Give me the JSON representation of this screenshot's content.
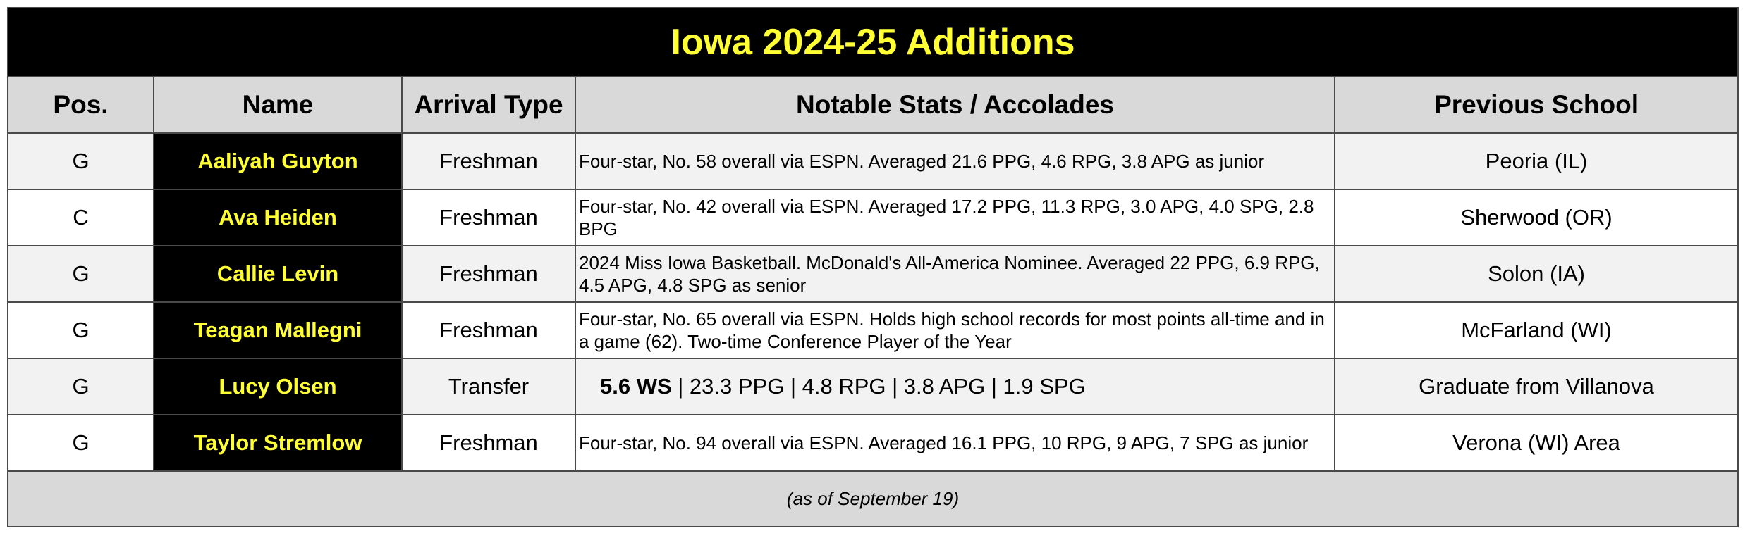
{
  "title": "Iowa 2024-25 Additions",
  "headers": {
    "pos": "Pos.",
    "name": "Name",
    "arrival": "Arrival Type",
    "notes": "Notable Stats / Accolades",
    "school": "Previous School"
  },
  "rows": [
    {
      "pos": "G",
      "name": "Aaliyah Guyton",
      "arrival": "Freshman",
      "notes": "Four-star, No. 58 overall via ESPN. Averaged 21.6 PPG, 4.6 RPG, 3.8 APG as junior",
      "school": "Peoria (IL)"
    },
    {
      "pos": "C",
      "name": "Ava Heiden",
      "arrival": "Freshman",
      "notes": "Four-star, No. 42 overall via ESPN. Averaged 17.2 PPG, 11.3 RPG, 3.0 APG, 4.0 SPG, 2.8 BPG",
      "school": "Sherwood (OR)"
    },
    {
      "pos": "G",
      "name": "Callie Levin",
      "arrival": "Freshman",
      "notes": "2024 Miss Iowa Basketball. McDonald's All-America Nominee. Averaged 22 PPG, 6.9 RPG, 4.5 APG, 4.8 SPG as senior",
      "school": "Solon (IA)"
    },
    {
      "pos": "G",
      "name": "Teagan Mallegni",
      "arrival": "Freshman",
      "notes": "Four-star, No. 65 overall via ESPN. Holds high school records for most points all-time and in a game (62). Two-time Conference Player of the Year",
      "school": "McFarland (WI)"
    },
    {
      "pos": "G",
      "name": "Lucy Olsen",
      "arrival": "Transfer",
      "notes_bold": "5.6 WS",
      "notes": " | 23.3 PPG | 4.8 RPG | 3.8 APG | 1.9 SPG",
      "school": "Graduate from Villanova"
    },
    {
      "pos": "G",
      "name": "Taylor Stremlow",
      "arrival": "Freshman",
      "notes": "Four-star, No. 94 overall via ESPN. Averaged 16.1 PPG, 10 RPG, 9 APG, 7 SPG as junior",
      "school": "Verona (WI) Area"
    }
  ],
  "footer": "(as of September 19)"
}
